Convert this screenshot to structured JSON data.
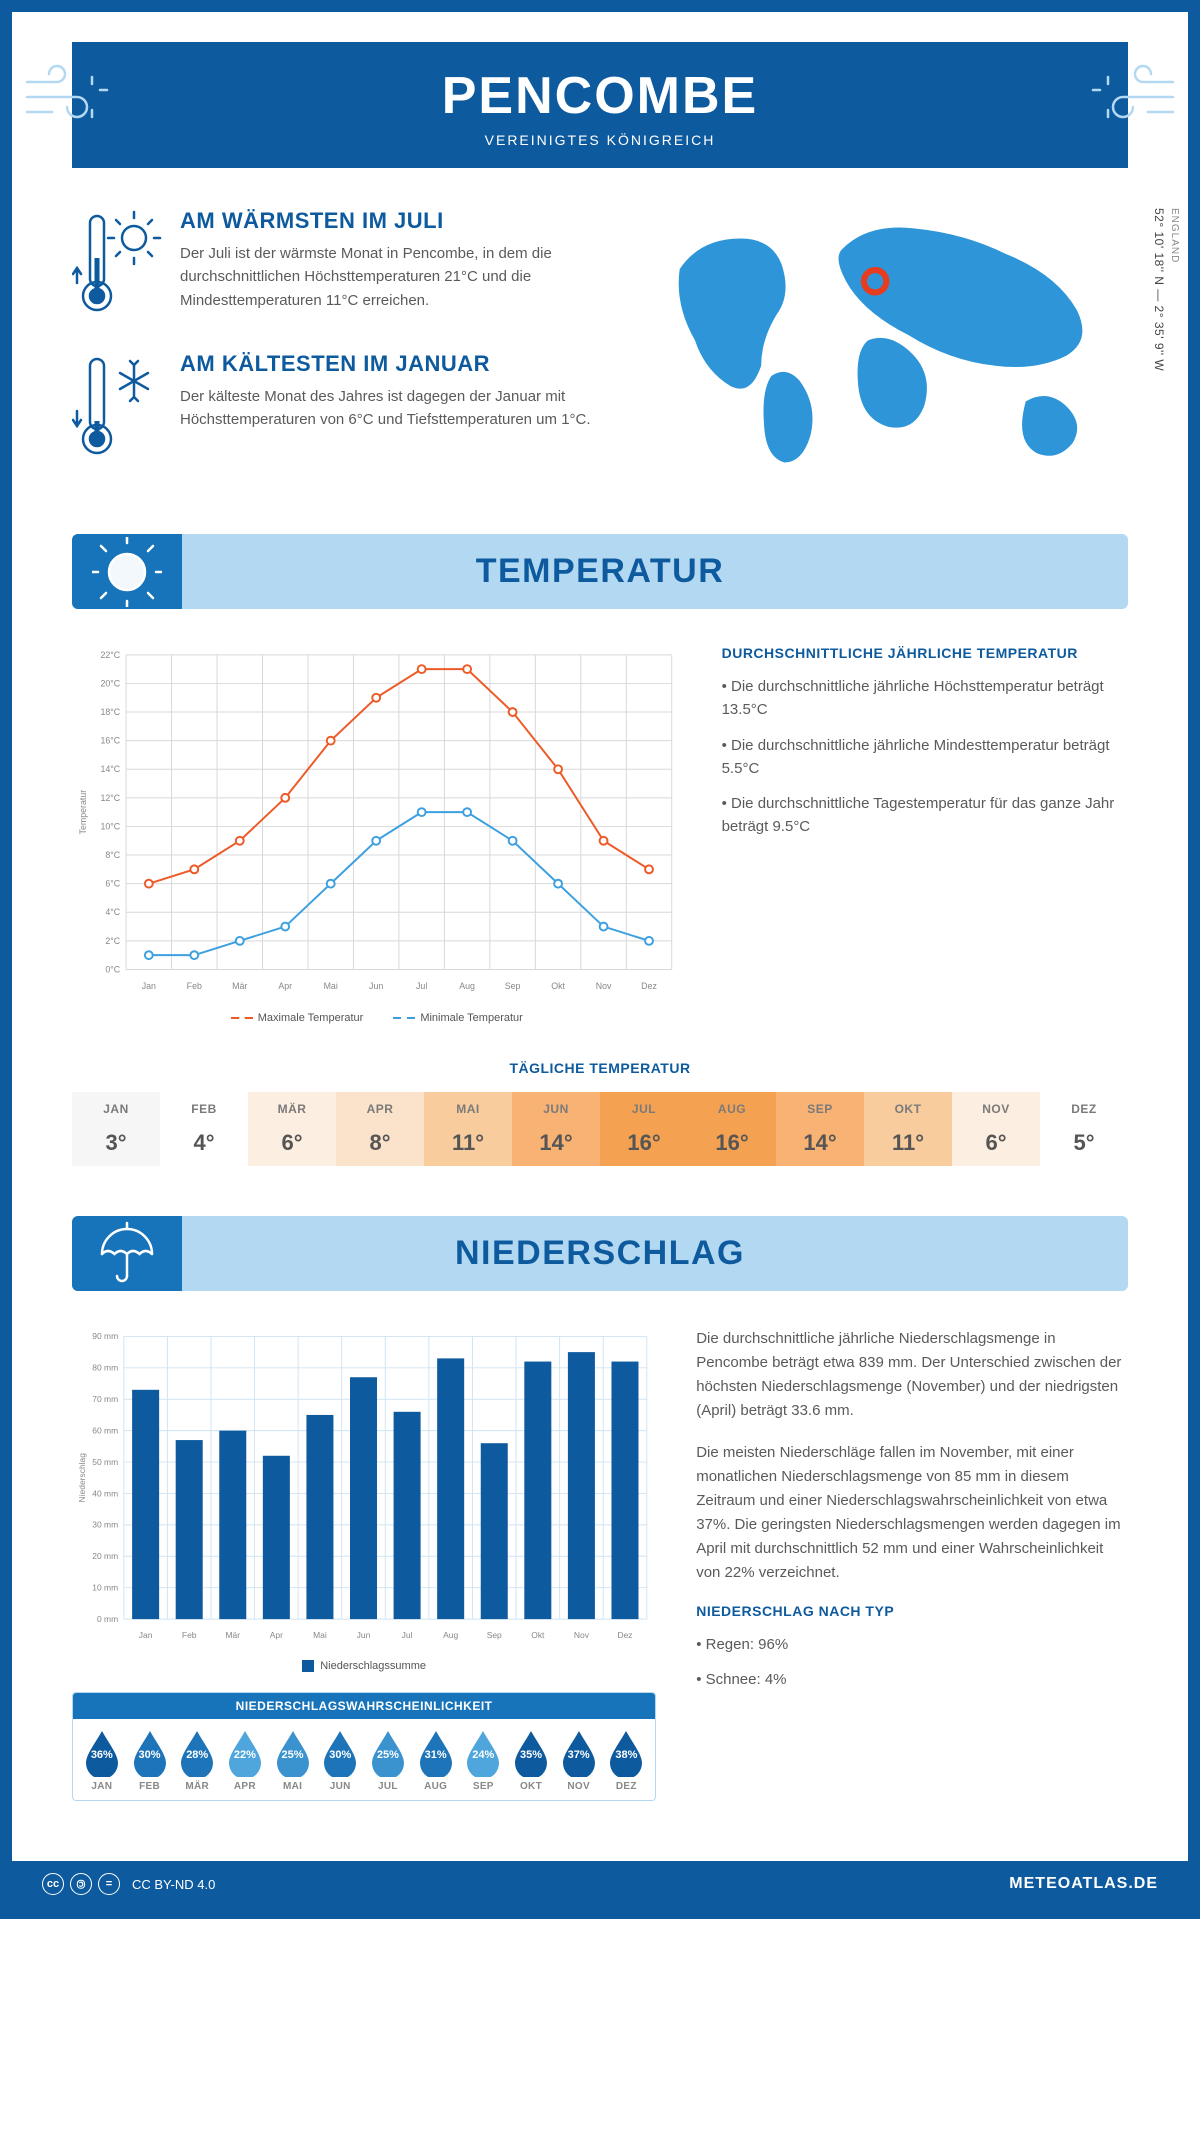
{
  "header": {
    "title": "PENCOMBE",
    "subtitle": "VEREINIGTES KÖNIGREICH"
  },
  "coords": "52° 10' 18'' N — 2° 35' 9'' W",
  "region": "ENGLAND",
  "facts": {
    "warm": {
      "title": "AM WÄRMSTEN IM JULI",
      "text": "Der Juli ist der wärmste Monat in Pencombe, in dem die durchschnittlichen Höchsttemperaturen 21°C und die Mindesttemperaturen 11°C erreichen."
    },
    "cold": {
      "title": "AM KÄLTESTEN IM JANUAR",
      "text": "Der kälteste Monat des Jahres ist dagegen der Januar mit Höchsttemperaturen von 6°C und Tiefsttemperaturen um 1°C."
    }
  },
  "sections": {
    "temperature": "TEMPERATUR",
    "precipitation": "NIEDERSCHLAG"
  },
  "temp_chart": {
    "type": "line",
    "months": [
      "Jan",
      "Feb",
      "Mär",
      "Apr",
      "Mai",
      "Jun",
      "Jul",
      "Aug",
      "Sep",
      "Okt",
      "Nov",
      "Dez"
    ],
    "max_series": [
      6,
      7,
      9,
      12,
      16,
      19,
      21,
      21,
      18,
      14,
      9,
      7
    ],
    "min_series": [
      1,
      1,
      2,
      3,
      6,
      9,
      11,
      11,
      9,
      6,
      3,
      2
    ],
    "max_color": "#ed5a28",
    "min_color": "#3ca0e0",
    "grid_color": "#d8d8d8",
    "ylim": [
      0,
      22
    ],
    "ytick_step": 2,
    "ylabel": "Temperatur",
    "legend_max": "Maximale Temperatur",
    "legend_min": "Minimale Temperatur"
  },
  "temp_text": {
    "heading": "DURCHSCHNITTLICHE JÄHRLICHE TEMPERATUR",
    "b1": "• Die durchschnittliche jährliche Höchsttemperatur beträgt 13.5°C",
    "b2": "• Die durchschnittliche jährliche Mindesttemperatur beträgt 5.5°C",
    "b3": "• Die durchschnittliche Tagestemperatur für das ganze Jahr beträgt 9.5°C"
  },
  "daily_temp": {
    "heading": "TÄGLICHE TEMPERATUR",
    "months": [
      "JAN",
      "FEB",
      "MÄR",
      "APR",
      "MAI",
      "JUN",
      "JUL",
      "AUG",
      "SEP",
      "OKT",
      "NOV",
      "DEZ"
    ],
    "values": [
      "3°",
      "4°",
      "6°",
      "8°",
      "11°",
      "14°",
      "16°",
      "16°",
      "14°",
      "11°",
      "6°",
      "5°"
    ],
    "bg_colors": [
      "#f6f6f6",
      "#ffffff",
      "#fceee0",
      "#fbe3cb",
      "#f9cc9d",
      "#f7b274",
      "#f5a152",
      "#f5a152",
      "#f7b274",
      "#f9cc9d",
      "#fceee0",
      "#ffffff"
    ]
  },
  "precip_chart": {
    "type": "bar",
    "months": [
      "Jan",
      "Feb",
      "Mär",
      "Apr",
      "Mai",
      "Jun",
      "Jul",
      "Aug",
      "Sep",
      "Okt",
      "Nov",
      "Dez"
    ],
    "values": [
      73,
      57,
      60,
      52,
      65,
      77,
      66,
      83,
      56,
      82,
      85,
      82
    ],
    "bar_color": "#0e5a9e",
    "grid_color": "#cfe3f2",
    "ylim": [
      0,
      90
    ],
    "ytick_step": 10,
    "ylabel": "Niederschlag",
    "legend": "Niederschlagssumme"
  },
  "precip_text": {
    "p1": "Die durchschnittliche jährliche Niederschlagsmenge in Pencombe beträgt etwa 839 mm. Der Unterschied zwischen der höchsten Niederschlagsmenge (November) und der niedrigsten (April) beträgt 33.6 mm.",
    "p2": "Die meisten Niederschläge fallen im November, mit einer monatlichen Niederschlagsmenge von 85 mm in diesem Zeitraum und einer Niederschlagswahrscheinlichkeit von etwa 37%. Die geringsten Niederschlagsmengen werden dagegen im April mit durchschnittlich 52 mm und einer Wahrscheinlichkeit von 22% verzeichnet.",
    "type_heading": "NIEDERSCHLAG NACH TYP",
    "type_b1": "• Regen: 96%",
    "type_b2": "• Schnee: 4%"
  },
  "precip_prob": {
    "heading": "NIEDERSCHLAGSWAHRSCHEINLICHKEIT",
    "months": [
      "JAN",
      "FEB",
      "MÄR",
      "APR",
      "MAI",
      "JUN",
      "JUL",
      "AUG",
      "SEP",
      "OKT",
      "NOV",
      "DEZ"
    ],
    "values": [
      "36%",
      "30%",
      "28%",
      "22%",
      "25%",
      "30%",
      "25%",
      "31%",
      "24%",
      "35%",
      "37%",
      "38%"
    ],
    "colors": [
      "#0e5a9e",
      "#1e74b8",
      "#1e74b8",
      "#4ea6dc",
      "#3a92ce",
      "#1e74b8",
      "#3a92ce",
      "#1e74b8",
      "#4ea6dc",
      "#0e5a9e",
      "#0e5a9e",
      "#0e5a9e"
    ]
  },
  "footer": {
    "license": "CC BY-ND 4.0",
    "brand": "METEOATLAS.DE"
  },
  "colors": {
    "primary": "#0e5a9e",
    "accent": "#1874ba",
    "light": "#b3d9f2"
  }
}
